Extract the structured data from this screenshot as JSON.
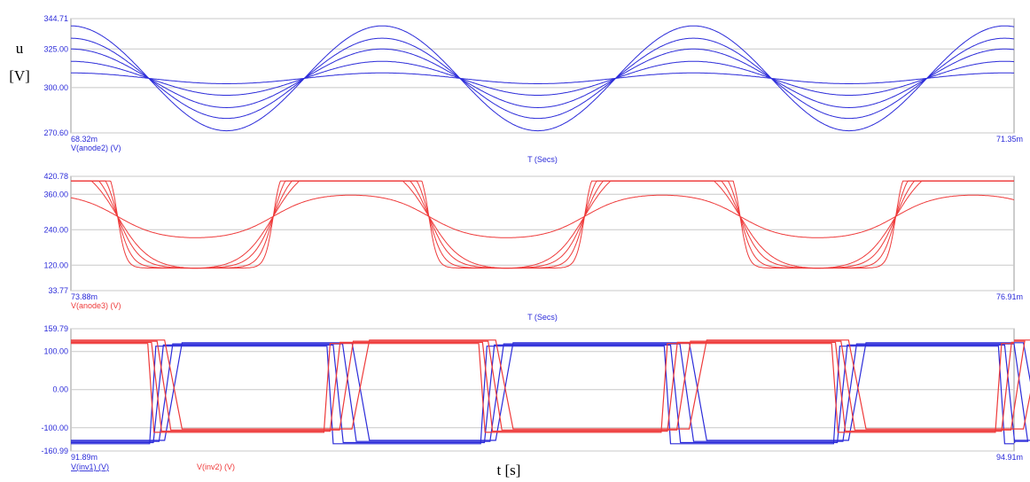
{
  "page": {
    "ylabel_symbol": "u",
    "ylabel_unit": "[V]",
    "xlabel": "t [s]"
  },
  "chart_data": [
    {
      "type": "line",
      "title": "",
      "ylim": [
        270.6,
        344.71
      ],
      "xlim": [
        68.32,
        71.35
      ],
      "x_unit": "ms",
      "ytick_values": [
        344.71,
        325.0,
        300.0,
        270.6
      ],
      "ytick_labels": [
        "344.71",
        "325.00",
        "300.00",
        "270.60"
      ],
      "xstart_label": "68.32m",
      "xend_label": "71.35m",
      "xlabel": "T (Secs)",
      "trace_label": "V(anode2) (V)",
      "color": "#2b2bd9",
      "grid": true,
      "wave": "sine",
      "period_ms": 1.0,
      "phase_ms": 0.0,
      "series": [
        {
          "offset": 306,
          "amplitude": 3.5
        },
        {
          "offset": 306,
          "amplitude": 11
        },
        {
          "offset": 306,
          "amplitude": 19
        },
        {
          "offset": 306,
          "amplitude": 26
        },
        {
          "offset": 306,
          "amplitude": 34
        }
      ]
    },
    {
      "type": "line",
      "title": "",
      "ylim": [
        33.77,
        420.78
      ],
      "xlim": [
        73.88,
        76.91
      ],
      "x_unit": "ms",
      "ytick_values": [
        420.78,
        360.0,
        240.0,
        120.0,
        33.77
      ],
      "ytick_labels": [
        "420.78",
        "360.00",
        "240.00",
        "120.00",
        "33.77"
      ],
      "xstart_label": "73.88m",
      "xend_label": "76.91m",
      "xlabel": "T (Secs)",
      "trace_label": "V(anode3) (V)",
      "color": "#ee3a3a",
      "grid": true,
      "wave": "clipped-sine",
      "period_ms": 1.0,
      "phase_ms": 0.0,
      "series": [
        {
          "offset": 285,
          "amplitude": 72,
          "drive": 1.0,
          "high": 405,
          "low": 55
        },
        {
          "offset": 285,
          "amplitude": 175,
          "drive": 1.4,
          "high": 405,
          "low": 100
        },
        {
          "offset": 285,
          "amplitude": 175,
          "drive": 2.2,
          "high": 405,
          "low": 75
        },
        {
          "offset": 285,
          "amplitude": 175,
          "drive": 3.5,
          "high": 405,
          "low": 60
        },
        {
          "offset": 285,
          "amplitude": 175,
          "drive": 6.0,
          "high": 405,
          "low": 50
        }
      ]
    },
    {
      "type": "line",
      "title": "",
      "ylim": [
        -160.99,
        159.79
      ],
      "xlim": [
        91.89,
        94.91
      ],
      "x_unit": "ms",
      "ytick_values": [
        159.79,
        100.0,
        0.0,
        -100.0,
        -160.99
      ],
      "ytick_labels": [
        "159.79",
        "100.00",
        "0.00",
        "-100.00",
        "-160.99"
      ],
      "xstart_label": "91.89m",
      "xend_label": "94.91m",
      "xlabel": "",
      "grid": true,
      "wave": "square",
      "period_ms": 1.0,
      "series": [
        {
          "name": "V(inv1) (V)",
          "color": "#2b2bd9",
          "polarity": -1,
          "phase_ms": 0.0,
          "edges_ms": [
            0.02,
            0.04,
            0.07,
            0.1
          ],
          "high": 118,
          "low": -138
        },
        {
          "name": "V(inv2) (V)",
          "color": "#ee3a3a",
          "polarity": 1,
          "phase_ms": 0.0,
          "edges_ms": [
            0.01,
            0.03,
            0.06,
            0.1
          ],
          "high": 125,
          "low": -108
        }
      ]
    }
  ]
}
